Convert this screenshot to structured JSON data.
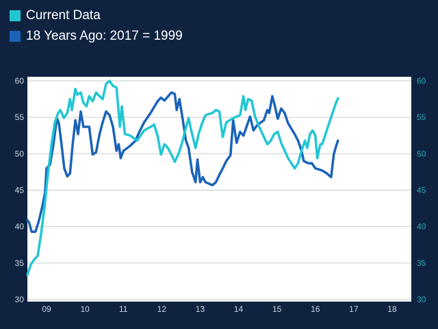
{
  "chart_data": {
    "type": "line",
    "title": "",
    "xlabel": "",
    "ylabel": "",
    "xlim": [
      2008.5,
      2018.5
    ],
    "ylim": [
      30,
      60
    ],
    "y_ticks": [
      30,
      35,
      40,
      45,
      50,
      55,
      60
    ],
    "y_tick_labels": [
      "30",
      "35",
      "40",
      "45",
      "50",
      "55",
      "60"
    ],
    "x_ticks": [
      2009,
      2010,
      2011,
      2012,
      2013,
      2014,
      2015,
      2016,
      2017,
      2018
    ],
    "x_tick_labels": [
      "09",
      "10",
      "11",
      "12",
      "13",
      "14",
      "15",
      "16",
      "17",
      "18"
    ],
    "grid": "horizontal",
    "legend_position": "top-left",
    "series": [
      {
        "name": "Current Data",
        "color": "#22c6d3",
        "x": [
          2008.5,
          2008.59,
          2008.68,
          2008.77,
          2008.86,
          2008.95,
          2009.04,
          2009.13,
          2009.21,
          2009.3,
          2009.36,
          2009.45,
          2009.54,
          2009.61,
          2009.66,
          2009.75,
          2009.8,
          2009.89,
          2009.96,
          2010.04,
          2010.11,
          2010.2,
          2010.29,
          2010.38,
          2010.46,
          2010.55,
          2010.64,
          2010.73,
          2010.82,
          2010.91,
          2010.96,
          2011.04,
          2011.18,
          2011.36,
          2011.54,
          2011.71,
          2011.8,
          2011.89,
          2011.98,
          2012.07,
          2012.16,
          2012.25,
          2012.34,
          2012.43,
          2012.52,
          2012.61,
          2012.7,
          2012.79,
          2012.88,
          2012.96,
          2013.05,
          2013.14,
          2013.32,
          2013.41,
          2013.5,
          2013.54,
          2013.59,
          2013.68,
          2013.86,
          2014.04,
          2014.13,
          2014.18,
          2014.25,
          2014.34,
          2014.43,
          2014.54,
          2014.66,
          2014.75,
          2014.84,
          2014.93,
          2015.02,
          2015.11,
          2015.29,
          2015.46,
          2015.55,
          2015.64,
          2015.73,
          2015.79,
          2015.86,
          2015.93,
          2016.0,
          2016.05,
          2016.13,
          2016.18,
          2016.36,
          2016.54,
          2016.59
        ],
        "y": [
          33.4,
          34.8,
          35.5,
          36.0,
          39.1,
          42.8,
          47.5,
          51.3,
          54.2,
          55.6,
          56.0,
          54.9,
          55.6,
          57.5,
          56.0,
          58.9,
          58.1,
          58.4,
          57.0,
          56.5,
          57.9,
          57.2,
          58.4,
          57.9,
          57.5,
          59.6,
          60.0,
          59.3,
          59.1,
          53.7,
          56.5,
          52.7,
          52.5,
          51.8,
          53.2,
          53.7,
          54.0,
          52.5,
          49.9,
          51.3,
          50.8,
          49.9,
          48.9,
          49.9,
          51.3,
          53.2,
          54.9,
          52.7,
          50.8,
          52.7,
          54.2,
          55.3,
          55.6,
          56.0,
          55.8,
          54.2,
          52.3,
          54.3,
          54.9,
          55.3,
          57.9,
          56.0,
          57.5,
          57.3,
          55.1,
          53.7,
          52.3,
          51.3,
          51.8,
          52.7,
          53.0,
          51.5,
          49.4,
          48.0,
          48.7,
          50.4,
          51.8,
          50.8,
          52.7,
          53.2,
          52.5,
          49.4,
          51.3,
          51.3,
          54.2,
          57.0,
          57.6
        ]
      },
      {
        "name": "18 Years Ago: 2017 = 1999",
        "color": "#1a63b8",
        "x": [
          2008.5,
          2008.55,
          2008.61,
          2008.71,
          2008.8,
          2008.89,
          2008.96,
          2009.0,
          2009.09,
          2009.18,
          2009.27,
          2009.32,
          2009.39,
          2009.46,
          2009.54,
          2009.61,
          2009.68,
          2009.75,
          2009.82,
          2009.89,
          2009.96,
          2010.11,
          2010.2,
          2010.29,
          2010.38,
          2010.46,
          2010.55,
          2010.64,
          2010.73,
          2010.82,
          2010.88,
          2010.93,
          2011.0,
          2011.18,
          2011.32,
          2011.39,
          2011.54,
          2011.71,
          2011.89,
          2011.98,
          2012.07,
          2012.25,
          2012.34,
          2012.39,
          2012.46,
          2012.55,
          2012.63,
          2012.7,
          2012.79,
          2012.88,
          2012.93,
          2013.0,
          2013.07,
          2013.14,
          2013.32,
          2013.41,
          2013.5,
          2013.59,
          2013.68,
          2013.79,
          2013.86,
          2013.95,
          2014.04,
          2014.13,
          2014.3,
          2014.39,
          2014.48,
          2014.66,
          2014.75,
          2014.8,
          2014.88,
          2014.95,
          2015.02,
          2015.11,
          2015.2,
          2015.29,
          2015.46,
          2015.55,
          2015.64,
          2015.7,
          2015.82,
          2015.91,
          2016.0,
          2016.18,
          2016.3,
          2016.41,
          2016.48,
          2016.54,
          2016.59
        ],
        "y": [
          40.9,
          40.5,
          39.3,
          39.3,
          40.8,
          42.8,
          44.7,
          48.0,
          48.5,
          51.3,
          54.9,
          54.2,
          51.3,
          48.0,
          46.9,
          47.3,
          51.3,
          54.6,
          52.7,
          55.8,
          53.7,
          53.7,
          49.9,
          50.2,
          52.7,
          54.3,
          55.8,
          55.3,
          53.7,
          50.4,
          51.3,
          49.4,
          50.4,
          51.1,
          51.8,
          52.7,
          54.3,
          55.6,
          57.2,
          57.7,
          57.3,
          58.4,
          58.2,
          56.0,
          57.5,
          54.6,
          51.8,
          50.8,
          47.5,
          46.1,
          49.2,
          46.1,
          46.8,
          46.1,
          45.7,
          46.1,
          47.1,
          48.0,
          49.0,
          49.8,
          54.6,
          51.5,
          53.0,
          52.5,
          55.1,
          53.2,
          53.9,
          54.6,
          56.0,
          55.6,
          57.9,
          56.5,
          54.8,
          56.2,
          55.6,
          54.2,
          52.7,
          51.8,
          50.4,
          49.0,
          48.7,
          48.7,
          48.0,
          47.7,
          47.3,
          46.8,
          49.9,
          51.0,
          51.8
        ]
      }
    ]
  }
}
